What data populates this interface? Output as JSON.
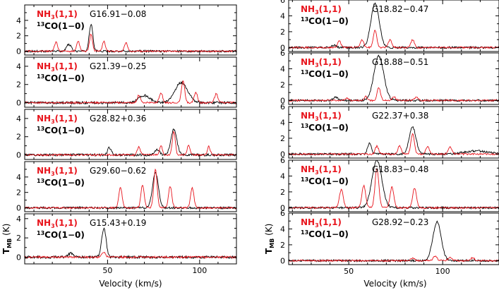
{
  "figure": {
    "xlabel": "Velocity (km/s)",
    "ylabel_main": "T",
    "ylabel_sub": "MB",
    "ylabel_unit": " (K)",
    "legend_nh3": "NH",
    "legend_nh3_sub": "3",
    "legend_nh3_rest": "(1,1)",
    "legend_co_sup": "13",
    "legend_co_rest": "CO(1−0)",
    "colors": {
      "nh3": "#e8141c",
      "co": "#000000"
    }
  },
  "chart_data": [
    {
      "type": "line",
      "column": "left",
      "title": "G16.91−0.08",
      "xlim": [
        5,
        120
      ],
      "ylim": [
        -0.5,
        6
      ],
      "xticks": [
        50,
        100
      ],
      "xtick_labels": [
        "50",
        "100"
      ],
      "yticks": [
        0,
        2,
        4
      ],
      "ytick_labels": [
        "0",
        "2",
        "4"
      ],
      "series": [
        {
          "name": "13CO(1-0)",
          "color": "#000000",
          "peaks": [
            [
              41,
              3.5,
              1.0
            ],
            [
              29,
              0.9,
              1.2
            ]
          ]
        },
        {
          "name": "NH3(1,1)",
          "color": "#e8141c",
          "peaks": [
            [
              22,
              1.2,
              0.8
            ],
            [
              34,
              1.3,
              0.8
            ],
            [
              41,
              2.2,
              0.8
            ],
            [
              48,
              1.3,
              0.8
            ],
            [
              60,
              1.1,
              0.8
            ]
          ]
        }
      ]
    },
    {
      "type": "line",
      "column": "left",
      "title": "G21.39−0.25",
      "xlim": [
        5,
        120
      ],
      "ylim": [
        -0.5,
        5
      ],
      "xticks": [
        50,
        100
      ],
      "xtick_labels": [
        "50",
        "100"
      ],
      "yticks": [
        0,
        2,
        4
      ],
      "ytick_labels": [
        "0",
        "2",
        "4"
      ],
      "series": [
        {
          "name": "13CO(1-0)",
          "color": "#000000",
          "peaks": [
            [
              90,
              2.2,
              3.5
            ],
            [
              70,
              0.8,
              3.0
            ]
          ]
        },
        {
          "name": "NH3(1,1)",
          "color": "#e8141c",
          "peaks": [
            [
              67,
              0.8,
              0.9
            ],
            [
              79,
              1.1,
              0.9
            ],
            [
              91,
              2.4,
              0.9
            ],
            [
              98,
              1.1,
              0.9
            ],
            [
              109,
              1.0,
              0.9
            ]
          ]
        }
      ]
    },
    {
      "type": "line",
      "column": "left",
      "title": "G28.82+0.36",
      "xlim": [
        5,
        120
      ],
      "ylim": [
        -0.5,
        5
      ],
      "xticks": [
        50,
        100
      ],
      "xtick_labels": [
        "50",
        "100"
      ],
      "yticks": [
        0,
        2,
        4
      ],
      "ytick_labels": [
        "0",
        "2",
        "4"
      ],
      "series": [
        {
          "name": "13CO(1-0)",
          "color": "#000000",
          "peaks": [
            [
              86,
              2.8,
              1.6
            ],
            [
              51,
              0.8,
              1.0
            ],
            [
              77,
              0.6,
              1.2
            ]
          ]
        },
        {
          "name": "NH3(1,1)",
          "color": "#e8141c",
          "peaks": [
            [
              67,
              0.9,
              0.8
            ],
            [
              79,
              1.0,
              0.8
            ],
            [
              86,
              2.6,
              0.8
            ],
            [
              94,
              1.0,
              0.8
            ],
            [
              105,
              0.9,
              0.8
            ]
          ]
        }
      ]
    },
    {
      "type": "line",
      "column": "left",
      "title": "G29.60−0.62",
      "xlim": [
        5,
        120
      ],
      "ylim": [
        -0.5,
        6
      ],
      "xticks": [
        50,
        100
      ],
      "xtick_labels": [
        "50",
        "100"
      ],
      "yticks": [
        0,
        2,
        4
      ],
      "ytick_labels": [
        "0",
        "2",
        "4"
      ],
      "series": [
        {
          "name": "13CO(1-0)",
          "color": "#000000",
          "peaks": [
            [
              76,
              4.6,
              1.6
            ]
          ]
        },
        {
          "name": "NH3(1,1)",
          "color": "#e8141c",
          "peaks": [
            [
              57,
              2.7,
              0.9
            ],
            [
              69,
              3.0,
              0.9
            ],
            [
              76,
              5.0,
              0.9
            ],
            [
              84,
              2.8,
              0.9
            ],
            [
              96,
              2.6,
              0.9
            ]
          ]
        }
      ]
    },
    {
      "type": "line",
      "column": "left",
      "title": "G15.43+0.19",
      "xlim": [
        5,
        120
      ],
      "ylim": [
        -0.7,
        4.5
      ],
      "xticks": [
        50,
        100
      ],
      "xtick_labels": [
        "50",
        "100"
      ],
      "yticks": [
        0,
        2,
        4
      ],
      "ytick_labels": [
        "0",
        "2",
        "4"
      ],
      "series": [
        {
          "name": "13CO(1-0)",
          "color": "#000000",
          "peaks": [
            [
              48,
              3.0,
              1.2
            ],
            [
              30,
              0.4,
              1.2
            ]
          ]
        },
        {
          "name": "NH3(1,1)",
          "color": "#e8141c",
          "peaks": [
            [
              48,
              0.5,
              1.0
            ]
          ]
        }
      ]
    },
    {
      "type": "line",
      "column": "right",
      "title": "G18.82−0.47",
      "xlim": [
        18,
        130
      ],
      "ylim": [
        -0.5,
        6
      ],
      "xticks": [
        50,
        100
      ],
      "xtick_labels": [
        "50",
        "100"
      ],
      "yticks": [
        0,
        2,
        4,
        6
      ],
      "ytick_labels": [
        "0",
        "2",
        "4",
        "6"
      ],
      "series": [
        {
          "name": "13CO(1-0)",
          "color": "#000000",
          "peaks": [
            [
              64,
              5.6,
              2.2
            ],
            [
              42,
              0.3,
              1.2
            ]
          ]
        },
        {
          "name": "NH3(1,1)",
          "color": "#e8141c",
          "peaks": [
            [
              45,
              0.8,
              0.9
            ],
            [
              57,
              1.0,
              0.9
            ],
            [
              64,
              2.2,
              0.9
            ],
            [
              72,
              1.0,
              0.9
            ],
            [
              84,
              1.0,
              0.9
            ]
          ]
        }
      ]
    },
    {
      "type": "line",
      "column": "right",
      "title": "G18.88−0.51",
      "xlim": [
        18,
        130
      ],
      "ylim": [
        -0.5,
        6
      ],
      "xticks": [
        50,
        100
      ],
      "xtick_labels": [
        "50",
        "100"
      ],
      "yticks": [
        0,
        2,
        4,
        6
      ],
      "ytick_labels": [
        "0",
        "2",
        "4",
        "6"
      ],
      "series": [
        {
          "name": "13CO(1-0)",
          "color": "#000000",
          "peaks": [
            [
              66,
              5.6,
              2.6
            ],
            [
              43,
              0.4,
              1.2
            ]
          ]
        },
        {
          "name": "NH3(1,1)",
          "color": "#e8141c",
          "peaks": [
            [
              49,
              0.3,
              0.9
            ],
            [
              59,
              0.5,
              0.9
            ],
            [
              66,
              1.6,
              0.9
            ],
            [
              74,
              0.5,
              0.9
            ],
            [
              86,
              0.4,
              0.9
            ]
          ]
        }
      ]
    },
    {
      "type": "line",
      "column": "right",
      "title": "G22.37+0.38",
      "xlim": [
        18,
        130
      ],
      "ylim": [
        -0.5,
        6
      ],
      "xticks": [
        50,
        100
      ],
      "xtick_labels": [
        "50",
        "100"
      ],
      "yticks": [
        0,
        2,
        4,
        6
      ],
      "ytick_labels": [
        "0",
        "2",
        "4",
        "6"
      ],
      "series": [
        {
          "name": "13CO(1-0)",
          "color": "#000000",
          "peaks": [
            [
              84,
              3.4,
              1.8
            ],
            [
              61,
              1.4,
              1.0
            ],
            [
              118,
              0.4,
              6.0
            ]
          ]
        },
        {
          "name": "NH3(1,1)",
          "color": "#e8141c",
          "peaks": [
            [
              65,
              1.0,
              0.9
            ],
            [
              77,
              1.0,
              0.9
            ],
            [
              84,
              2.6,
              0.9
            ],
            [
              92,
              1.0,
              0.9
            ],
            [
              104,
              0.9,
              0.9
            ]
          ]
        }
      ]
    },
    {
      "type": "line",
      "column": "right",
      "title": "G18.83−0.48",
      "xlim": [
        18,
        130
      ],
      "ylim": [
        -0.5,
        6
      ],
      "xticks": [
        50,
        100
      ],
      "xtick_labels": [
        "50",
        "100"
      ],
      "yticks": [
        0,
        2,
        4,
        6
      ],
      "ytick_labels": [
        "0",
        "2",
        "4",
        "6"
      ],
      "series": [
        {
          "name": "13CO(1-0)",
          "color": "#000000",
          "peaks": [
            [
              65,
              6.0,
              2.6
            ]
          ]
        },
        {
          "name": "NH3(1,1)",
          "color": "#e8141c",
          "peaks": [
            [
              46,
              2.3,
              1.0
            ],
            [
              58,
              2.8,
              1.0
            ],
            [
              65,
              5.0,
              1.0
            ],
            [
              73,
              2.6,
              1.0
            ],
            [
              85,
              2.5,
              1.0
            ]
          ]
        }
      ]
    },
    {
      "type": "line",
      "column": "right",
      "title": "G28.92−0.23",
      "xlim": [
        18,
        130
      ],
      "ylim": [
        -0.5,
        6
      ],
      "xticks": [
        50,
        100
      ],
      "xtick_labels": [
        "50",
        "100"
      ],
      "yticks": [
        0,
        2,
        4,
        6
      ],
      "ytick_labels": [
        "0",
        "2",
        "4",
        "6"
      ],
      "series": [
        {
          "name": "13CO(1-0)",
          "color": "#000000",
          "peaks": [
            [
              97,
              4.9,
              2.2
            ]
          ]
        },
        {
          "name": "NH3(1,1)",
          "color": "#e8141c",
          "peaks": [
            [
              84,
              0.3,
              1.0
            ],
            [
              96,
              0.6,
              1.0
            ],
            [
              104,
              0.4,
              1.0
            ],
            [
              116,
              0.4,
              1.0
            ]
          ]
        }
      ]
    }
  ]
}
